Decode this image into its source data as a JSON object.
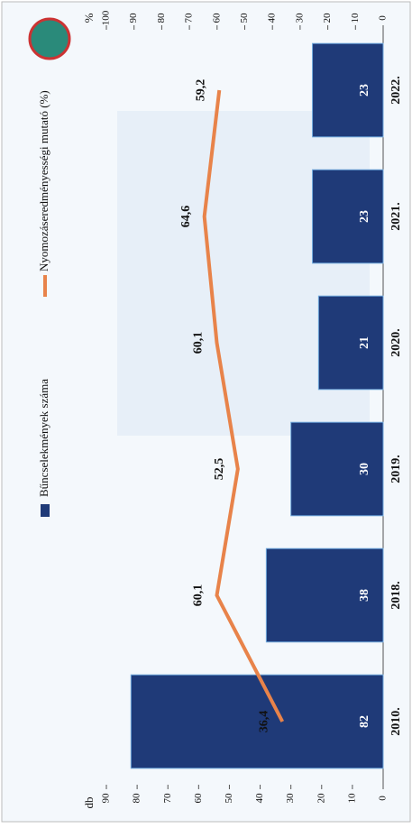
{
  "chart_data": {
    "type": "bar",
    "categories": [
      "2010.",
      "2018.",
      "2019.",
      "2020.",
      "2021.",
      "2022."
    ],
    "series": [
      {
        "name": "Bűncselekmények száma",
        "type": "bar",
        "color": "#1f3a78",
        "values": [
          82,
          38,
          30,
          21,
          23,
          23
        ]
      },
      {
        "name": "Nyomozáseredményességi mutató (%)",
        "type": "line",
        "axis": "y2",
        "color": "#e8834a",
        "values": [
          36.4,
          60.1,
          52.5,
          60.1,
          64.6,
          59.2
        ],
        "value_labels": [
          "36,4",
          "60,1",
          "52,5",
          "60,1",
          "64,6",
          "59,2"
        ]
      }
    ],
    "y_label": "db",
    "y2_label": "%",
    "ylim": [
      0,
      90
    ],
    "yticks": [
      0,
      10,
      20,
      30,
      40,
      50,
      60,
      70,
      80,
      90
    ],
    "y2lim": [
      0,
      100
    ],
    "y2ticks": [
      0,
      10,
      20,
      30,
      40,
      50,
      60,
      70,
      80,
      90,
      100
    ]
  }
}
